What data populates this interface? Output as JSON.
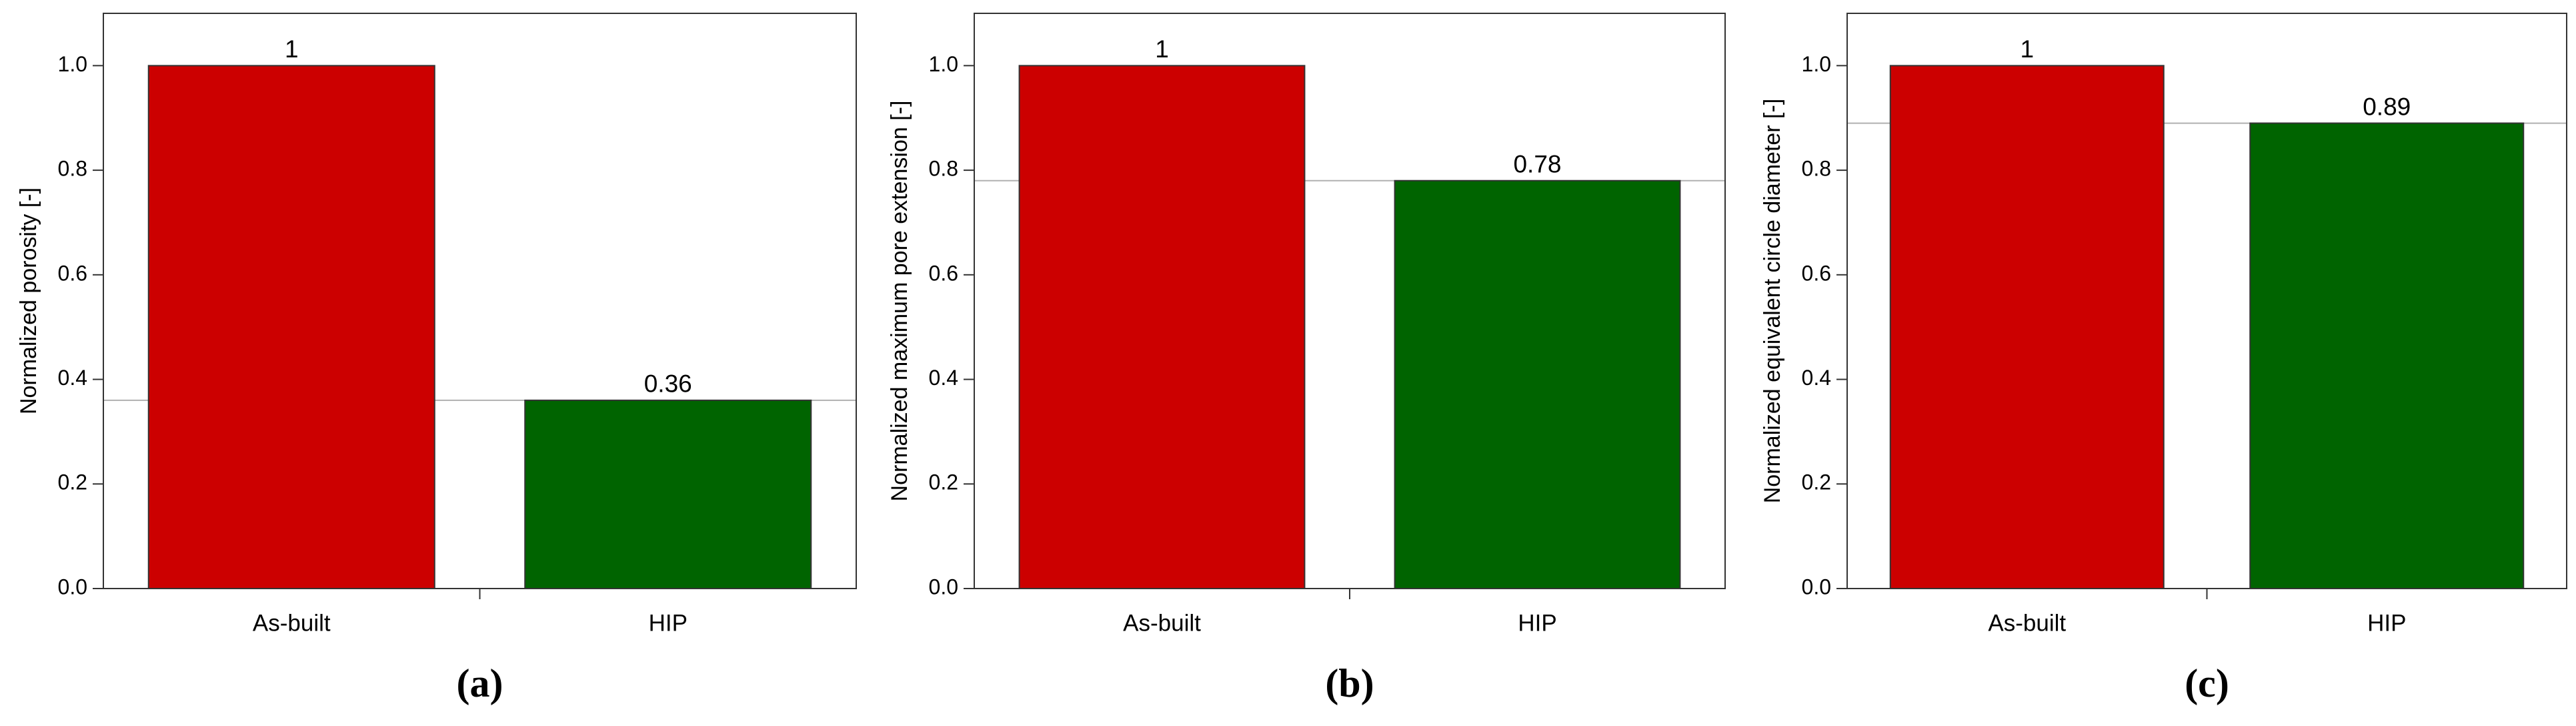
{
  "chart_data": [
    {
      "type": "bar",
      "panel_label": "(a)",
      "y_label": "Normalized porosity [-]",
      "categories": [
        "As-built",
        "HIP"
      ],
      "values": [
        1,
        0.36
      ],
      "value_labels": [
        "1",
        "0.36"
      ],
      "colors": [
        "#cc0000",
        "#006400"
      ],
      "ylim": [
        0,
        1.1
      ],
      "yticks": [
        {
          "value": 0,
          "label": "0.0"
        },
        0.2,
        0.4,
        0.6,
        0.8,
        {
          "value": 1,
          "label": "1.0"
        }
      ]
    },
    {
      "type": "bar",
      "panel_label": "(b)",
      "y_label": "Normalized maximum pore extension [-]",
      "categories": [
        "As-built",
        "HIP"
      ],
      "values": [
        1,
        0.78
      ],
      "value_labels": [
        "1",
        "0.78"
      ],
      "colors": [
        "#cc0000",
        "#006400"
      ],
      "ylim": [
        0,
        1.1
      ],
      "yticks": [
        {
          "value": 0,
          "label": "0.0"
        },
        0.2,
        0.4,
        0.6,
        0.8,
        {
          "value": 1,
          "label": "1.0"
        }
      ]
    },
    {
      "type": "bar",
      "panel_label": "(c)",
      "y_label": "Normalized equivalent circle diameter [-]",
      "categories": [
        "As-built",
        "HIP"
      ],
      "values": [
        1,
        0.89
      ],
      "value_labels": [
        "1",
        "0.89"
      ],
      "colors": [
        "#cc0000",
        "#006400"
      ],
      "ylim": [
        0,
        1.1
      ],
      "yticks": [
        {
          "value": 0,
          "label": "0.0"
        },
        0.2,
        0.4,
        0.6,
        0.8,
        {
          "value": 1,
          "label": "1.0"
        }
      ]
    }
  ]
}
